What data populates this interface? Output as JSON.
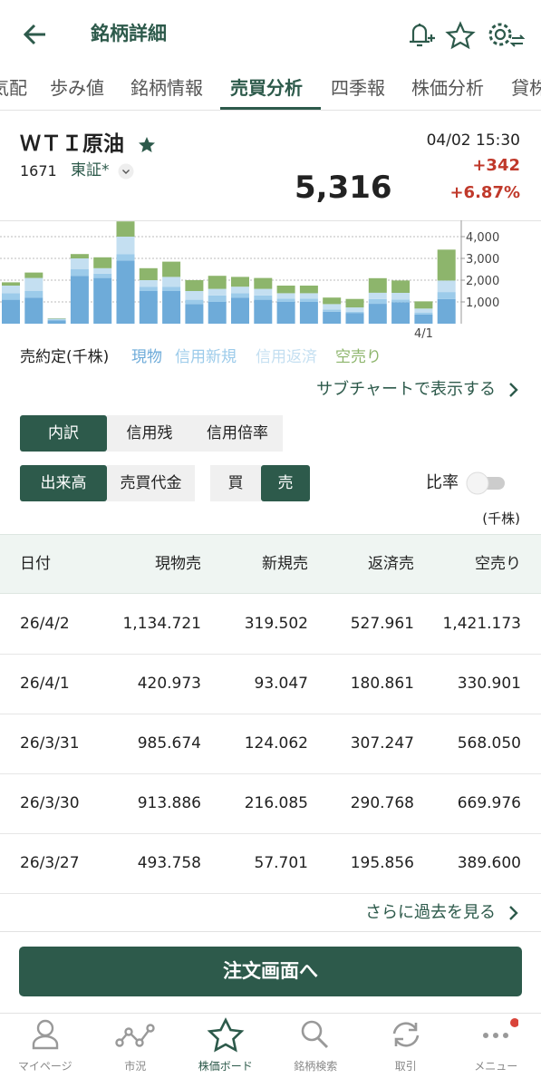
{
  "header": {
    "title": "銘柄詳細"
  },
  "tabs": [
    "気配",
    "歩み値",
    "銘柄情報",
    "売買分析",
    "四季報",
    "株価分析",
    "貸株"
  ],
  "active_tab": 3,
  "stock": {
    "name": "ＷＴＩ原油",
    "code": "1671",
    "market": "東証*",
    "datetime": "04/02 15:30",
    "price": "5,316",
    "change": "+342",
    "change_pct": "+6.87%"
  },
  "chart_data": {
    "type": "bar",
    "stacked": true,
    "legend_title": "売約定(千株)",
    "categories": [
      null,
      null,
      null,
      null,
      null,
      null,
      null,
      null,
      null,
      null,
      null,
      null,
      null,
      null,
      null,
      null,
      null,
      null,
      "4/1",
      null
    ],
    "series": [
      {
        "name": "現物",
        "color": "#6eabd9",
        "values": [
          1100,
          1200,
          150,
          2200,
          2100,
          2900,
          1500,
          1500,
          900,
          1000,
          1200,
          1100,
          1000,
          1000,
          550,
          493.758,
          913.886,
          985.674,
          420.973,
          1134.721
        ]
      },
      {
        "name": "信用新規",
        "color": "#9ccbea",
        "values": [
          300,
          300,
          50,
          300,
          200,
          300,
          200,
          200,
          200,
          300,
          200,
          200,
          150,
          150,
          100,
          57.701,
          216.085,
          124.062,
          93.047,
          319.502
        ]
      },
      {
        "name": "信用返済",
        "color": "#c4dff1",
        "values": [
          350,
          600,
          30,
          500,
          250,
          800,
          300,
          450,
          400,
          300,
          300,
          300,
          250,
          250,
          250,
          195.856,
          290.768,
          307.247,
          180.861,
          527.961
        ]
      },
      {
        "name": "空売り",
        "color": "#8db56c",
        "values": [
          150,
          250,
          20,
          200,
          500,
          700,
          550,
          700,
          500,
          600,
          450,
          500,
          350,
          350,
          300,
          389.6,
          669.976,
          568.05,
          330.901,
          1421.173
        ]
      }
    ],
    "ylim": [
      0,
      4750
    ],
    "yticks": [
      {
        "value": 1000,
        "label": "1,000"
      },
      {
        "value": 2000,
        "label": "2,000"
      },
      {
        "value": 3000,
        "label": "3,000"
      },
      {
        "value": 4000,
        "label": "4,000"
      }
    ],
    "grid": true
  },
  "subchart_link": "サブチャートで表示する",
  "segments": {
    "breakdown": [
      "内訳",
      "信用残",
      "信用倍率"
    ],
    "metric": [
      "出来高",
      "売買代金"
    ],
    "side": [
      "買",
      "売"
    ]
  },
  "ratio_label": "比率",
  "unit": "(千株)",
  "table": {
    "columns": [
      "日付",
      "現物売",
      "新規売",
      "返済売",
      "空売り"
    ],
    "rows": [
      [
        "26/4/2",
        "1,134.721",
        "319.502",
        "527.961",
        "1,421.173"
      ],
      [
        "26/4/1",
        "420.973",
        "93.047",
        "180.861",
        "330.901"
      ],
      [
        "26/3/31",
        "985.674",
        "124.062",
        "307.247",
        "568.050"
      ],
      [
        "26/3/30",
        "913.886",
        "216.085",
        "290.768",
        "669.976"
      ],
      [
        "26/3/27",
        "493.758",
        "57.701",
        "195.856",
        "389.600"
      ]
    ]
  },
  "more_link": "さらに過去を見る",
  "order_button": "注文画面へ",
  "nav": [
    "マイページ",
    "市況",
    "株価ボード",
    "銘柄検索",
    "取引",
    "メニュー"
  ],
  "active_nav": 2
}
